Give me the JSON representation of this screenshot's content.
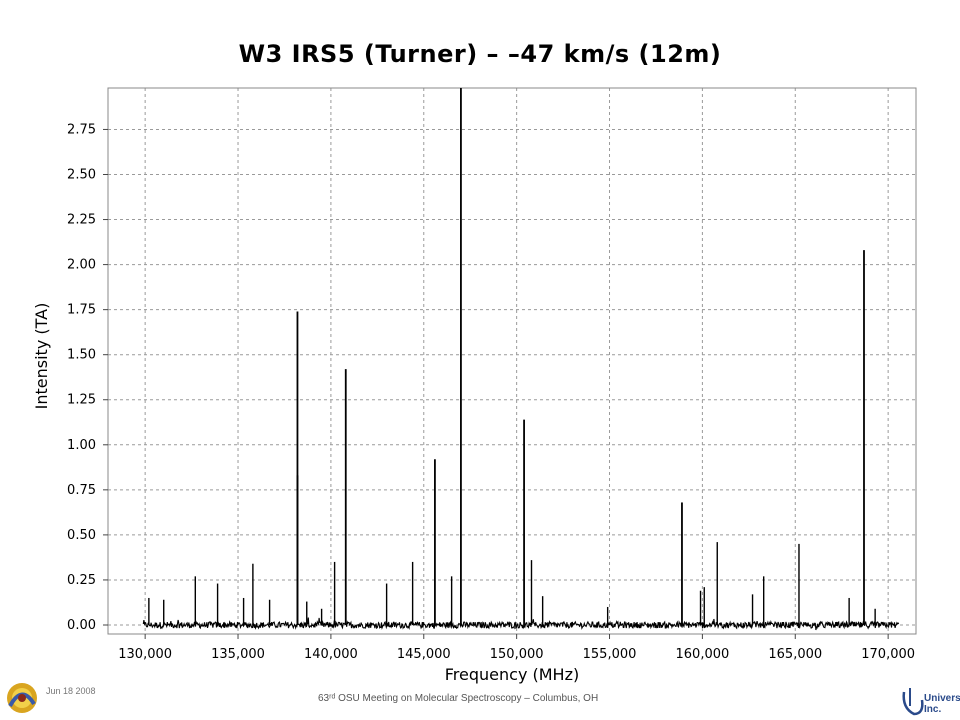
{
  "chart_data": {
    "type": "line",
    "title": "W3 IRS5 (Turner) – –47 km/s (12m)",
    "xlabel": "Frequency (MHz)",
    "ylabel": "Intensity (TA)",
    "xlim": [
      128000,
      171500
    ],
    "ylim": [
      -0.05,
      2.98
    ],
    "xticks": [
      130000,
      135000,
      140000,
      145000,
      150000,
      155000,
      160000,
      165000,
      170000
    ],
    "xtick_labels": [
      "130,000",
      "135,000",
      "140,000",
      "145,000",
      "150,000",
      "155,000",
      "160,000",
      "165,000",
      "170,000"
    ],
    "yticks": [
      0.0,
      0.25,
      0.5,
      0.75,
      1.0,
      1.25,
      1.5,
      1.75,
      2.0,
      2.25,
      2.5,
      2.75
    ],
    "ytick_labels": [
      "0.00",
      "0.25",
      "0.50",
      "0.75",
      "1.00",
      "1.25",
      "1.50",
      "1.75",
      "2.00",
      "2.25",
      "2.50",
      "2.75"
    ],
    "grid": true,
    "baseline_range": [
      129900,
      170600
    ],
    "series": [
      {
        "peaks": [
          {
            "x": 130200,
            "y": 0.15
          },
          {
            "x": 131000,
            "y": 0.14
          },
          {
            "x": 132700,
            "y": 0.27
          },
          {
            "x": 133900,
            "y": 0.23
          },
          {
            "x": 135300,
            "y": 0.15
          },
          {
            "x": 135800,
            "y": 0.34
          },
          {
            "x": 136700,
            "y": 0.14
          },
          {
            "x": 138200,
            "y": 1.74
          },
          {
            "x": 138200,
            "y": 0.83
          },
          {
            "x": 138700,
            "y": 0.13
          },
          {
            "x": 139500,
            "y": 0.09
          },
          {
            "x": 140200,
            "y": 0.35
          },
          {
            "x": 140800,
            "y": 1.42
          },
          {
            "x": 143000,
            "y": 0.23
          },
          {
            "x": 144400,
            "y": 0.35
          },
          {
            "x": 145600,
            "y": 0.92
          },
          {
            "x": 146500,
            "y": 0.27
          },
          {
            "x": 147000,
            "y": 2.98
          },
          {
            "x": 150400,
            "y": 1.14
          },
          {
            "x": 150800,
            "y": 0.36
          },
          {
            "x": 151400,
            "y": 0.16
          },
          {
            "x": 154900,
            "y": 0.1
          },
          {
            "x": 158900,
            "y": 0.68
          },
          {
            "x": 159900,
            "y": 0.19
          },
          {
            "x": 160100,
            "y": 0.21
          },
          {
            "x": 160800,
            "y": 0.46
          },
          {
            "x": 162700,
            "y": 0.17
          },
          {
            "x": 163300,
            "y": 0.27
          },
          {
            "x": 165200,
            "y": 0.45
          },
          {
            "x": 167900,
            "y": 0.15
          },
          {
            "x": 168700,
            "y": 2.08
          },
          {
            "x": 169300,
            "y": 0.09
          }
        ]
      }
    ]
  },
  "footer": {
    "date": "Jun 18 2008",
    "meeting": "63ʳᵈ OSU Meeting on Molecular Spectroscopy – Columbus, OH",
    "logo_right_text": "Universities, Inc."
  },
  "colors": {
    "trace": "#000000",
    "grid": "#9a9a9a",
    "frame": "#888888"
  }
}
